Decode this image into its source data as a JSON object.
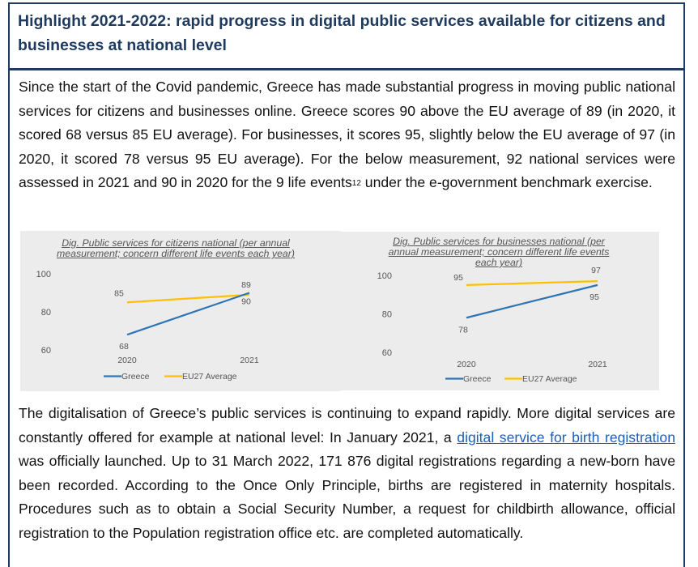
{
  "title": "Highlight 2021-2022: rapid progress in digital public services available for citizens and businesses at national level",
  "para1": {
    "text_a": "Since the start of the Covid pandemic, Greece has made substantial progress in moving public national services for citizens and businesses online. Greece scores 90 above the EU average of 89 (in 2020, it scored 68 versus 85 EU average). For businesses, it scores 95, slightly below the EU average of 97 (in 2020, it scored 78 versus 95 EU average). For the below measurement, 92 national services were assessed in 2021 and 90 in 2020 for the 9 life events",
    "footnote": "12",
    "text_b": " under the e-government benchmark exercise."
  },
  "para2": {
    "text_a": "The digitalisation of Greece’s public services is continuing to expand rapidly. More digital services are constantly offered for example at national level: In January 2021, a ",
    "link": "digital service for birth registration",
    "text_b": " was officially launched. Up to 31 March 2022, 171 876 digital registrations regarding a new-born have been recorded. According to the Once Only Principle, births are registered in maternity hospitals. Procedures such as to obtain a Social Security Number, a request for childbirth allowance, official registration to the Population registration office etc. are completed automatically."
  },
  "colors": {
    "greece": "#2e75b6",
    "eu27": "#ffc000",
    "title": "#1f3a5f"
  },
  "chart_data": [
    {
      "type": "line",
      "title": "Dig. Public services for citizens national (per annual measurement; concern different life events each year)",
      "x": [
        "2020",
        "2021"
      ],
      "series": [
        {
          "name": "Greece",
          "values": [
            68,
            90
          ]
        },
        {
          "name": "EU27 Average",
          "values": [
            85,
            89
          ]
        }
      ],
      "yticks": [
        "100",
        "80",
        "60"
      ],
      "ylim": [
        60,
        100
      ],
      "legend": "bottom"
    },
    {
      "type": "line",
      "title": "Dig. Public services for businesses national (per annual measurement; concern different life events each year)",
      "x": [
        "2020",
        "2021"
      ],
      "series": [
        {
          "name": "Greece",
          "values": [
            78,
            95
          ]
        },
        {
          "name": "EU27 Average",
          "values": [
            95,
            97
          ]
        }
      ],
      "yticks": [
        "100",
        "80",
        "60"
      ],
      "ylim": [
        60,
        100
      ],
      "legend": "bottom"
    }
  ]
}
